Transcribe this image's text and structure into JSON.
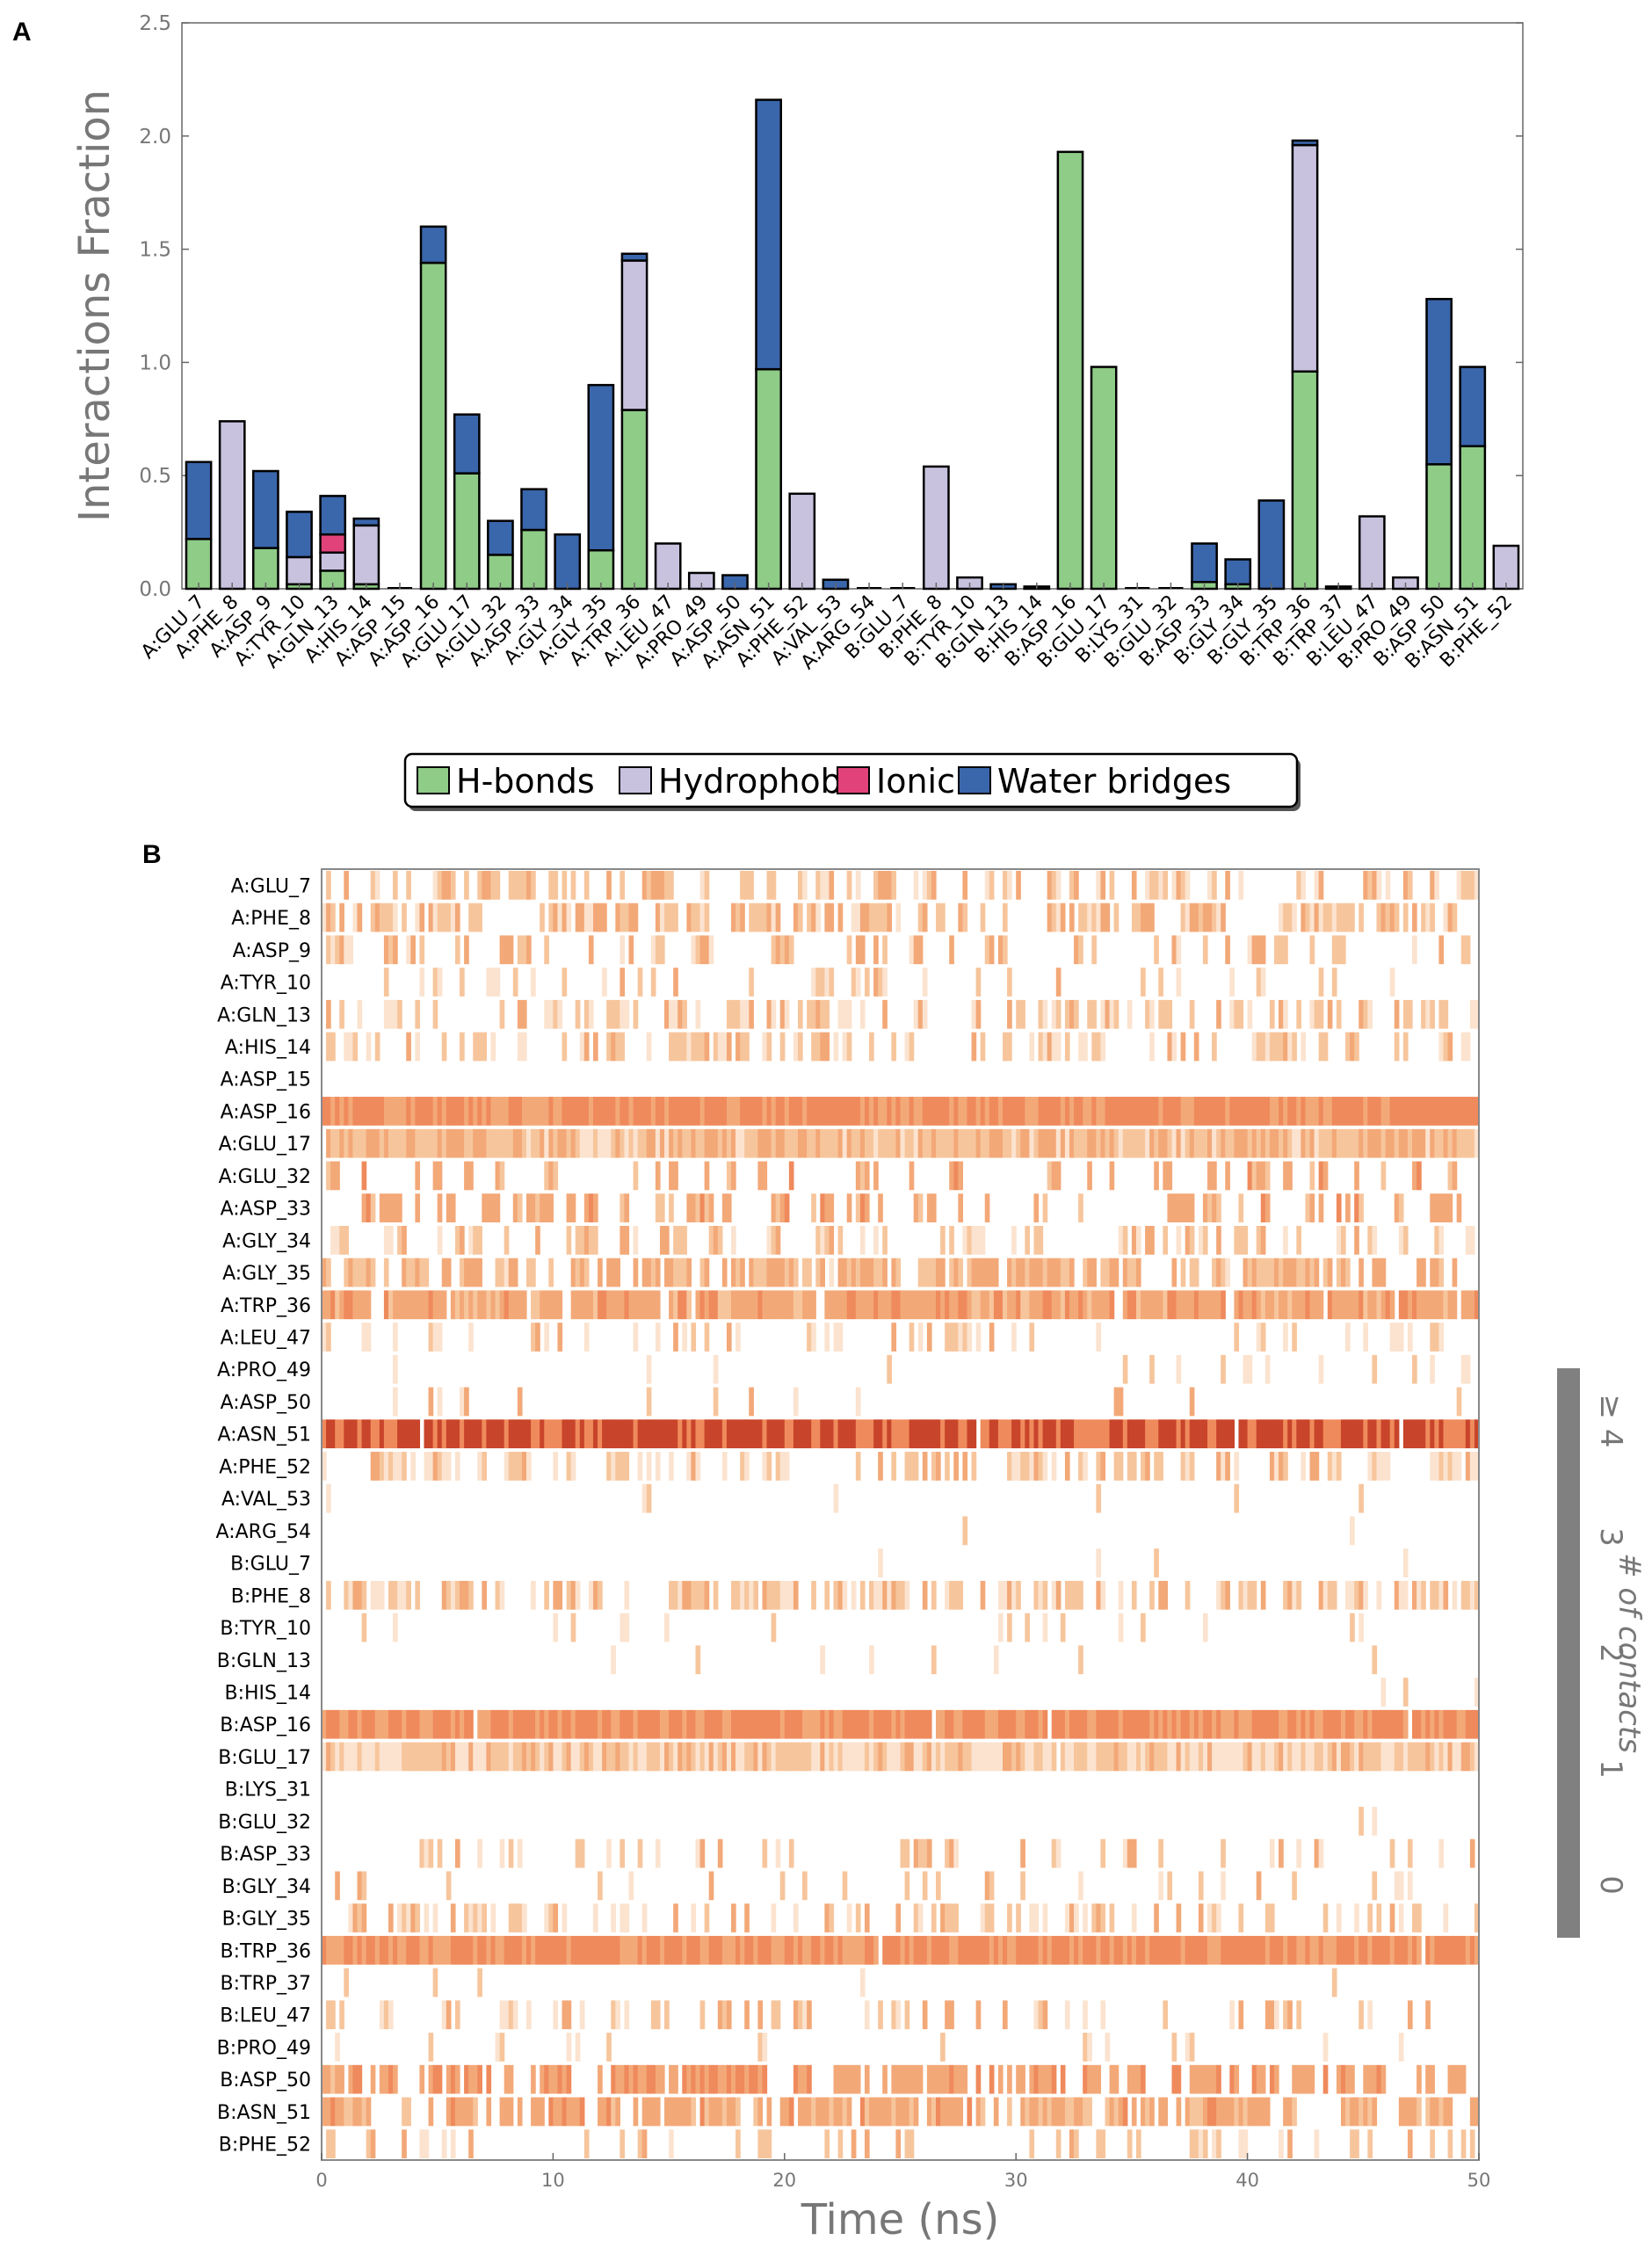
{
  "panels": {
    "a": "A",
    "b": "B"
  },
  "chart_data": [
    {
      "type": "bar",
      "stacked": true,
      "ylabel": "Interactions Fraction",
      "ylim": [
        0,
        2.5
      ],
      "yticks": [
        "0.0",
        "0.5",
        "1.0",
        "1.5",
        "2.0",
        "2.5"
      ],
      "grid": false,
      "legend_position": "bottom-center",
      "categories": [
        "A:GLU_7",
        "A:PHE_8",
        "A:ASP_9",
        "A:TYR_10",
        "A:GLN_13",
        "A:HIS_14",
        "A:ASP_15",
        "A:ASP_16",
        "A:GLU_17",
        "A:GLU_32",
        "A:ASP_33",
        "A:GLY_34",
        "A:GLY_35",
        "A:TRP_36",
        "A:LEU_47",
        "A:PRO_49",
        "A:ASP_50",
        "A:ASN_51",
        "A:PHE_52",
        "A:VAL_53",
        "A:ARG_54",
        "B:GLU_7",
        "B:PHE_8",
        "B:TYR_10",
        "B:GLN_13",
        "B:HIS_14",
        "B:ASP_16",
        "B:GLU_17",
        "B:LYS_31",
        "B:GLU_32",
        "B:ASP_33",
        "B:GLY_34",
        "B:GLY_35",
        "B:TRP_36",
        "B:TRP_37",
        "B:LEU_47",
        "B:PRO_49",
        "B:ASP_50",
        "B:ASN_51",
        "B:PHE_52"
      ],
      "series": [
        {
          "name": "H-bonds",
          "color": "#8fcc87",
          "values": [
            0.22,
            0,
            0.18,
            0.02,
            0.08,
            0.02,
            0,
            1.44,
            0.51,
            0.15,
            0.26,
            0,
            0.17,
            0.79,
            0,
            0,
            0,
            0.97,
            0,
            0,
            0,
            0,
            0,
            0,
            0,
            0,
            1.93,
            0.98,
            0,
            0,
            0.03,
            0.02,
            0,
            0.96,
            0,
            0,
            0,
            0.55,
            0.63,
            0
          ]
        },
        {
          "name": "Hydrophobic",
          "color": "#c9c2df",
          "values": [
            0,
            0.74,
            0,
            0.12,
            0.08,
            0.26,
            0,
            0,
            0,
            0,
            0,
            0,
            0,
            0.66,
            0.2,
            0.07,
            0,
            0,
            0.42,
            0,
            0,
            0,
            0.54,
            0.05,
            0,
            0,
            0,
            0,
            0,
            0,
            0,
            0,
            0,
            1.0,
            0,
            0.32,
            0.05,
            0,
            0,
            0.19
          ]
        },
        {
          "name": "Ionic",
          "color": "#e2427a",
          "values": [
            0,
            0,
            0,
            0,
            0.08,
            0,
            0,
            0,
            0,
            0,
            0,
            0,
            0,
            0,
            0,
            0,
            0,
            0,
            0,
            0,
            0,
            0,
            0,
            0,
            0,
            0,
            0,
            0,
            0,
            0,
            0,
            0,
            0,
            0,
            0,
            0,
            0,
            0,
            0,
            0
          ]
        },
        {
          "name": "Water bridges",
          "color": "#3a66ab",
          "values": [
            0.34,
            0,
            0.34,
            0.2,
            0.17,
            0.03,
            0,
            0.16,
            0.26,
            0.15,
            0.18,
            0.24,
            0.73,
            0.03,
            0,
            0,
            0.06,
            1.19,
            0,
            0.04,
            0,
            0,
            0,
            0,
            0.02,
            0.01,
            0,
            0,
            0,
            0,
            0.17,
            0.11,
            0.39,
            0.02,
            0.01,
            0,
            0,
            0.73,
            0.35,
            0
          ]
        }
      ]
    },
    {
      "type": "heatmap",
      "xlabel": "Time (ns)",
      "xlim": [
        0,
        50
      ],
      "xticks": [
        "0",
        "10",
        "20",
        "30",
        "40",
        "50"
      ],
      "colorbar": {
        "title": "# of contacts",
        "ticks": [
          "0",
          "1",
          "2",
          "3",
          "≥ 4"
        ]
      },
      "rows": [
        {
          "label": "A:GLU_7",
          "density": 0.45,
          "intensity": 1.1
        },
        {
          "label": "A:PHE_8",
          "density": 0.5,
          "intensity": 1.1
        },
        {
          "label": "A:ASP_9",
          "density": 0.3,
          "intensity": 1.2
        },
        {
          "label": "A:TYR_10",
          "density": 0.15,
          "intensity": 0.9
        },
        {
          "label": "A:GLN_13",
          "density": 0.4,
          "intensity": 1.0
        },
        {
          "label": "A:HIS_14",
          "density": 0.4,
          "intensity": 1.0
        },
        {
          "label": "A:ASP_15",
          "density": 0.0,
          "intensity": 0.5
        },
        {
          "label": "A:ASP_16",
          "density": 0.9,
          "intensity": 2.0
        },
        {
          "label": "A:GLU_17",
          "density": 0.85,
          "intensity": 1.2
        },
        {
          "label": "A:GLU_32",
          "density": 0.25,
          "intensity": 1.5
        },
        {
          "label": "A:ASP_33",
          "density": 0.3,
          "intensity": 1.5
        },
        {
          "label": "A:GLY_34",
          "density": 0.3,
          "intensity": 1.0
        },
        {
          "label": "A:GLY_35",
          "density": 0.6,
          "intensity": 1.3
        },
        {
          "label": "A:TRP_36",
          "density": 0.7,
          "intensity": 1.6
        },
        {
          "label": "A:LEU_47",
          "density": 0.2,
          "intensity": 0.9
        },
        {
          "label": "A:PRO_49",
          "density": 0.1,
          "intensity": 0.8
        },
        {
          "label": "A:ASP_50",
          "density": 0.05,
          "intensity": 1.0
        },
        {
          "label": "A:ASN_51",
          "density": 0.97,
          "intensity": 3.0
        },
        {
          "label": "A:PHE_52",
          "density": 0.4,
          "intensity": 1.0
        },
        {
          "label": "A:VAL_53",
          "density": 0.05,
          "intensity": 0.8
        },
        {
          "label": "A:ARG_54",
          "density": 0.01,
          "intensity": 0.8
        },
        {
          "label": "B:GLU_7",
          "density": 0.01,
          "intensity": 0.8
        },
        {
          "label": "B:PHE_8",
          "density": 0.5,
          "intensity": 1.0
        },
        {
          "label": "B:TYR_10",
          "density": 0.05,
          "intensity": 0.8
        },
        {
          "label": "B:GLN_13",
          "density": 0.03,
          "intensity": 0.8
        },
        {
          "label": "B:HIS_14",
          "density": 0.01,
          "intensity": 0.8
        },
        {
          "label": "B:ASP_16",
          "density": 1.0,
          "intensity": 2.0
        },
        {
          "label": "B:GLU_17",
          "density": 1.0,
          "intensity": 1.0
        },
        {
          "label": "B:LYS_31",
          "density": 0.0,
          "intensity": 0.8
        },
        {
          "label": "B:GLU_32",
          "density": 0.01,
          "intensity": 0.8
        },
        {
          "label": "B:ASP_33",
          "density": 0.2,
          "intensity": 1.0
        },
        {
          "label": "B:GLY_34",
          "density": 0.12,
          "intensity": 1.0
        },
        {
          "label": "B:GLY_35",
          "density": 0.35,
          "intensity": 1.0
        },
        {
          "label": "B:TRP_36",
          "density": 1.0,
          "intensity": 2.0
        },
        {
          "label": "B:TRP_37",
          "density": 0.01,
          "intensity": 0.8
        },
        {
          "label": "B:LEU_47",
          "density": 0.3,
          "intensity": 1.0
        },
        {
          "label": "B:PRO_49",
          "density": 0.05,
          "intensity": 0.8
        },
        {
          "label": "B:ASP_50",
          "density": 0.55,
          "intensity": 1.7
        },
        {
          "label": "B:ASN_51",
          "density": 0.6,
          "intensity": 1.5
        },
        {
          "label": "B:PHE_52",
          "density": 0.2,
          "intensity": 1.0
        }
      ]
    }
  ]
}
